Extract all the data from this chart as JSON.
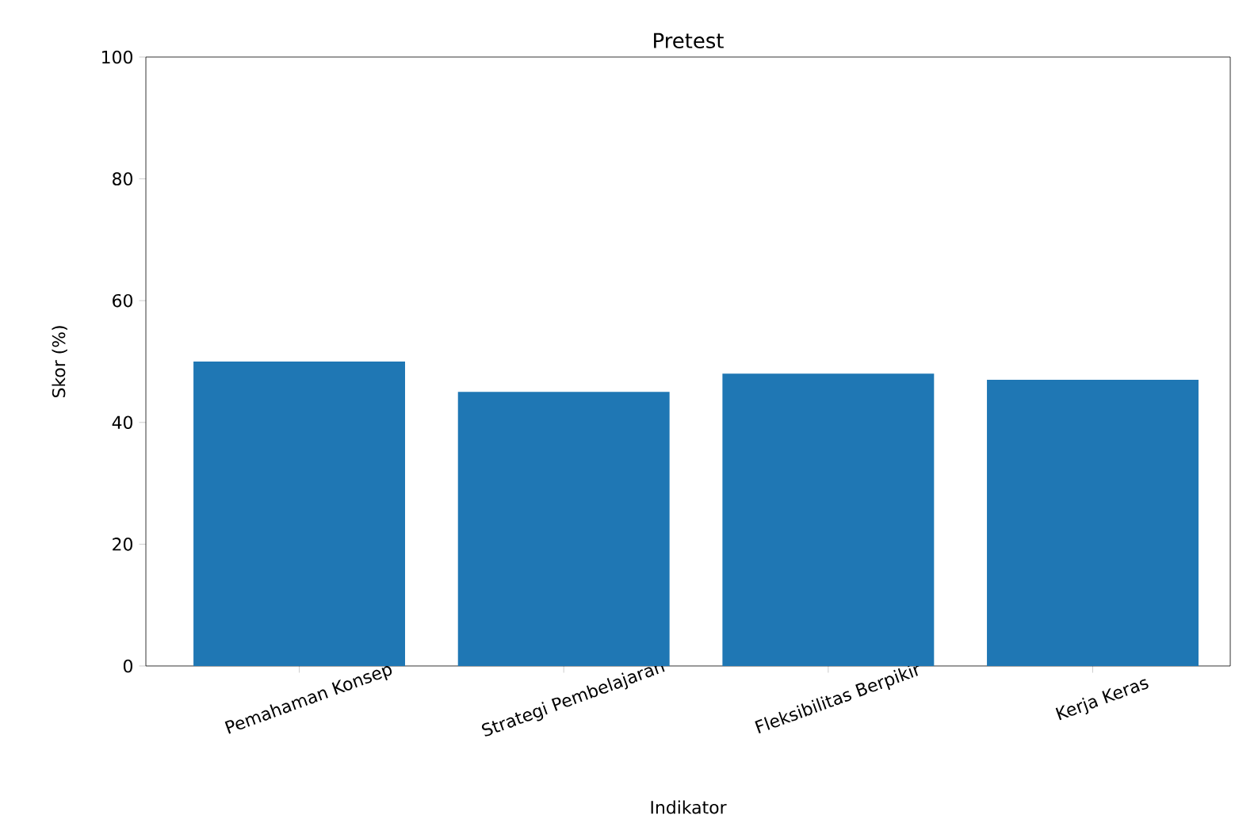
{
  "chart_data": {
    "type": "bar",
    "title": "Pretest",
    "xlabel": "Indikator",
    "ylabel": "Skor (%)",
    "categories": [
      "Pemahaman Konsep",
      "Strategi Pembelajaran",
      "Fleksibilitas Berpikir",
      "Kerja Keras"
    ],
    "values": [
      50,
      45,
      48,
      47
    ],
    "color": "#1f77b4",
    "ylim": [
      0,
      100
    ],
    "yticks": [
      0,
      20,
      40,
      60,
      80,
      100
    ]
  }
}
